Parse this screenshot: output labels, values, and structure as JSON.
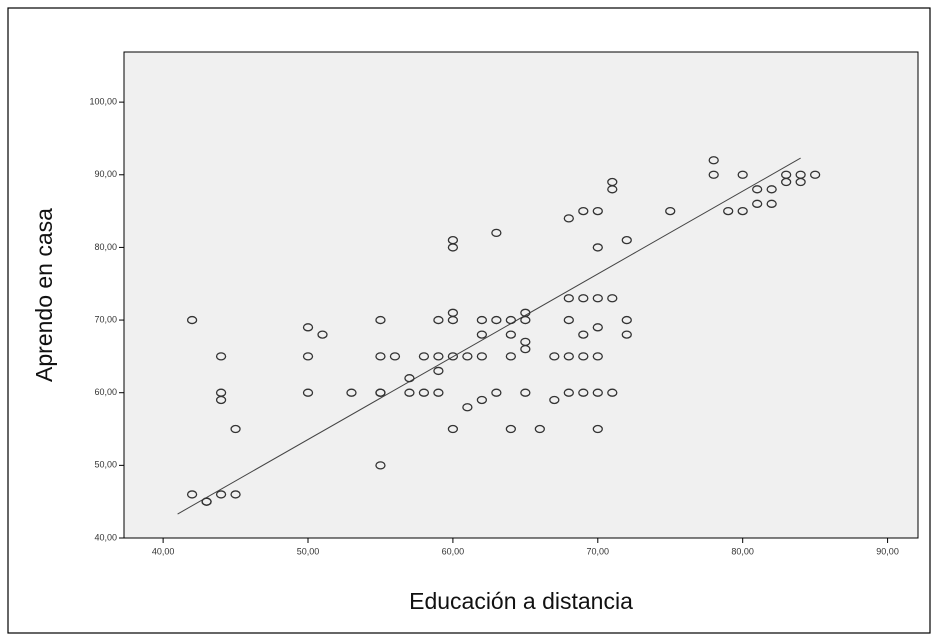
{
  "chart_data": {
    "type": "scatter",
    "x_label": "Educación a distancia",
    "y_label": "Aprendo en casa",
    "xlim": [
      37.3,
      92.1
    ],
    "ylim": [
      40,
      106.9
    ],
    "xticks": [
      {
        "value": 40,
        "label": "40,00"
      },
      {
        "value": 50,
        "label": "50,00"
      },
      {
        "value": 60,
        "label": "60,00"
      },
      {
        "value": 70,
        "label": "70,00"
      },
      {
        "value": 80,
        "label": "80,00"
      },
      {
        "value": 90,
        "label": "90,00"
      }
    ],
    "yticks": [
      {
        "value": 40,
        "label": "40,00"
      },
      {
        "value": 50,
        "label": "50,00"
      },
      {
        "value": 60,
        "label": "60,00"
      },
      {
        "value": 70,
        "label": "70,00"
      },
      {
        "value": 80,
        "label": "80,00"
      },
      {
        "value": 90,
        "label": "90,00"
      },
      {
        "value": 100,
        "label": "100,00"
      }
    ],
    "x": [
      42,
      42,
      43,
      43,
      44,
      44,
      44,
      44,
      45,
      45,
      50,
      50,
      50,
      51,
      53,
      55,
      55,
      55,
      55,
      55,
      56,
      57,
      57,
      58,
      58,
      59,
      59,
      59,
      59,
      60,
      60,
      60,
      60,
      60,
      60,
      61,
      61,
      62,
      62,
      62,
      62,
      63,
      63,
      63,
      64,
      64,
      64,
      64,
      65,
      65,
      65,
      65,
      65,
      66,
      67,
      67,
      68,
      68,
      68,
      68,
      68,
      69,
      69,
      69,
      69,
      69,
      70,
      70,
      70,
      70,
      70,
      70,
      70,
      71,
      71,
      71,
      71,
      72,
      72,
      72,
      75,
      78,
      78,
      79,
      80,
      80,
      81,
      81,
      82,
      82,
      83,
      83,
      84,
      84,
      85
    ],
    "y": [
      70,
      46,
      45,
      45,
      65,
      60,
      59,
      46,
      55,
      46,
      69,
      65,
      60,
      68,
      60,
      70,
      65,
      60,
      60,
      50,
      65,
      62,
      60,
      65,
      60,
      70,
      65,
      63,
      60,
      81,
      80,
      71,
      70,
      65,
      55,
      65,
      58,
      70,
      68,
      65,
      59,
      82,
      70,
      60,
      70,
      68,
      65,
      55,
      71,
      70,
      67,
      66,
      60,
      55,
      65,
      59,
      84,
      73,
      70,
      65,
      60,
      85,
      73,
      68,
      65,
      60,
      85,
      80,
      73,
      69,
      65,
      60,
      55,
      89,
      88,
      73,
      60,
      81,
      70,
      68,
      85,
      92,
      90,
      85,
      90,
      85,
      88,
      86,
      88,
      86,
      90,
      89,
      90,
      89,
      90
    ],
    "fit_line": {
      "x": [
        41,
        84
      ],
      "y": [
        43.3,
        92.3
      ]
    },
    "marker_color": "#333333",
    "line_color": "#444444",
    "background": "#f0f0f0"
  }
}
